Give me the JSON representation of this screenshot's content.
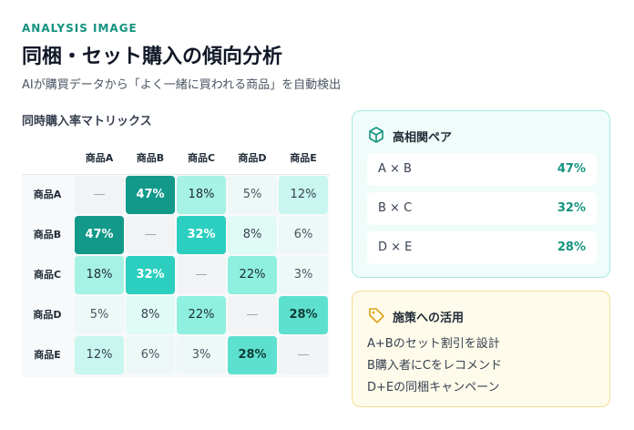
{
  "header": {
    "eyebrow": "ANALYSIS IMAGE",
    "title": "同梱・セット購入の傾向分析",
    "subtitle": "AIが購買データから「よく一緒に買われる商品」を自動検出"
  },
  "matrix": {
    "title": "同時購入率マトリックス",
    "columns": [
      "商品A",
      "商品B",
      "商品C",
      "商品D",
      "商品E"
    ],
    "rows": [
      {
        "label": "商品A",
        "cells": [
          "—",
          "47%",
          "18%",
          "5%",
          "12%"
        ]
      },
      {
        "label": "商品B",
        "cells": [
          "47%",
          "—",
          "32%",
          "8%",
          "6%"
        ]
      },
      {
        "label": "商品C",
        "cells": [
          "18%",
          "32%",
          "—",
          "22%",
          "3%"
        ]
      },
      {
        "label": "商品D",
        "cells": [
          "5%",
          "8%",
          "22%",
          "—",
          "28%"
        ]
      },
      {
        "label": "商品E",
        "cells": [
          "12%",
          "6%",
          "3%",
          "28%",
          "—"
        ]
      }
    ]
  },
  "pairs": {
    "title": "高相関ペア",
    "items": [
      {
        "pair": "A × B",
        "rate": "47%"
      },
      {
        "pair": "B × C",
        "rate": "32%"
      },
      {
        "pair": "D × E",
        "rate": "28%"
      }
    ]
  },
  "actions": {
    "title": "施策への活用",
    "items": [
      "A+Bのセット割引を設計",
      "B購入者にCをレコメンド",
      "D+Eの同梱キャンペーン"
    ]
  }
}
